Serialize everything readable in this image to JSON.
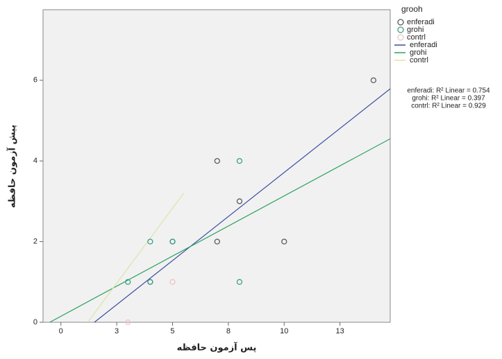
{
  "chart_data": {
    "type": "scatter",
    "x_label": "پس آزمون حافظه",
    "y_label": "پیش آزمون حافظه",
    "legend_title": "grooh",
    "xlim": [
      -0.8,
      14.75
    ],
    "ylim": [
      0,
      7.75
    ],
    "xticks": [
      0,
      {
        "value": 2.5,
        "label": "3"
      },
      5,
      {
        "value": 7.5,
        "label": "8"
      },
      10,
      {
        "value": 12.5,
        "label": "13"
      }
    ],
    "yticks": [
      0,
      2,
      4,
      6
    ],
    "series": [
      {
        "name": "enferadi",
        "color": "#5a5a5a",
        "x": [
          14,
          7,
          8,
          7,
          10,
          4,
          5
        ],
        "values": [
          6,
          4,
          3,
          2,
          2,
          1,
          2
        ]
      },
      {
        "name": "grohi",
        "color": "#3a9e8a",
        "x": [
          8,
          4,
          5,
          3,
          4,
          8
        ],
        "values": [
          4,
          2,
          2,
          1,
          1,
          1
        ]
      },
      {
        "name": "contrl",
        "color": "#efc4c4",
        "x": [
          5,
          3
        ],
        "values": [
          1,
          0
        ]
      }
    ],
    "fit_lines": [
      {
        "name": "enferadi",
        "color": "#3b4ba0",
        "x": [
          1.5,
          14.75
        ],
        "values": [
          0,
          5.79
        ]
      },
      {
        "name": "grohi",
        "color": "#2aa060",
        "x": [
          -0.5,
          14.75
        ],
        "values": [
          0,
          4.55
        ]
      },
      {
        "name": "contrl",
        "color": "#d8e6a8",
        "x": [
          1.2,
          5.5
        ],
        "values": [
          0,
          3.2
        ]
      }
    ],
    "annotations": [
      "enferadi: R² Linear = 0.754",
      "grohi: R² Linear = 0.397",
      "contrl: R² Linear = 0.929"
    ]
  }
}
